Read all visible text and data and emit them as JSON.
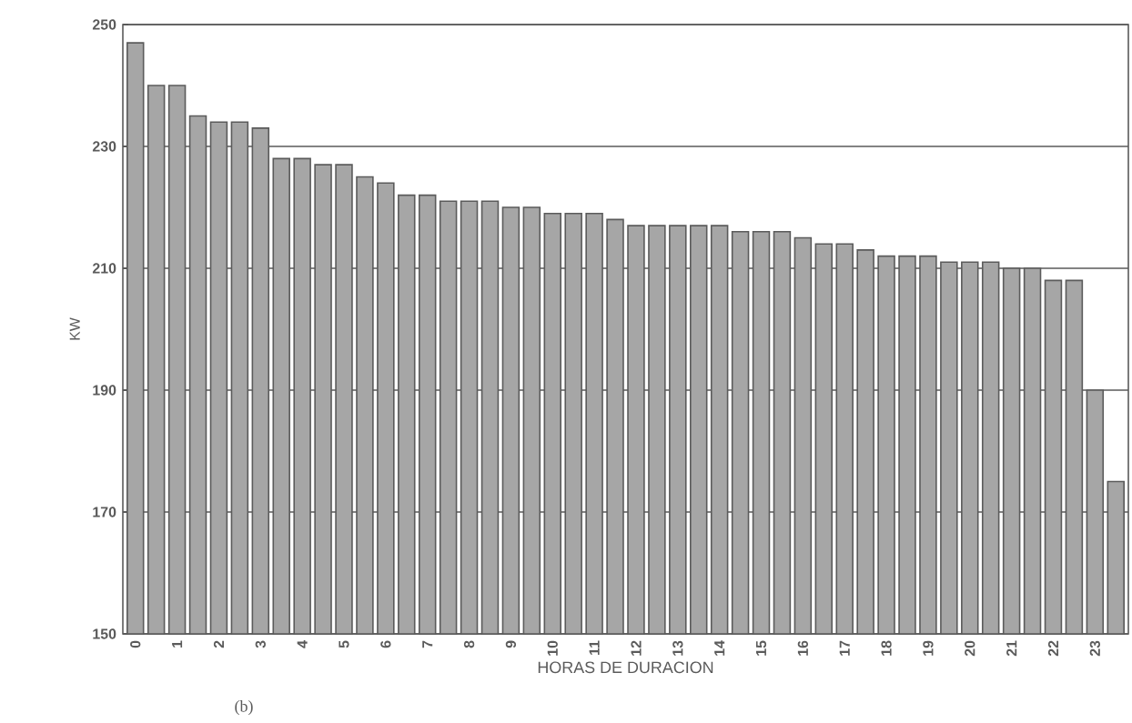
{
  "chart_data": {
    "type": "bar",
    "xlabel": "HORAS DE DURACION",
    "ylabel": "KW",
    "annotations": [
      "(b)"
    ],
    "categories": [
      "0",
      null,
      "1",
      null,
      "2",
      null,
      "3",
      null,
      "4",
      null,
      "5",
      null,
      "6",
      null,
      "7",
      null,
      "8",
      null,
      "9",
      null,
      "10",
      null,
      "11",
      null,
      "12",
      null,
      "13",
      null,
      "14",
      null,
      "15",
      null,
      "16",
      null,
      "17",
      null,
      "18",
      null,
      "19",
      null,
      "20",
      null,
      "21",
      null,
      "22",
      null,
      "23",
      null
    ],
    "values": [
      247,
      240,
      240,
      235,
      234,
      234,
      233,
      228,
      228,
      227,
      227,
      225,
      224,
      222,
      222,
      221,
      221,
      221,
      220,
      220,
      219,
      219,
      219,
      218,
      217,
      217,
      217,
      217,
      217,
      216,
      216,
      216,
      215,
      214,
      214,
      213,
      212,
      212,
      212,
      211,
      211,
      211,
      210,
      210,
      208,
      208,
      190,
      175
    ],
    "color": "#a6a6a6",
    "ylim": [
      150,
      250
    ],
    "yticks": [
      150,
      170,
      190,
      210,
      230,
      250
    ],
    "grid": "y"
  }
}
